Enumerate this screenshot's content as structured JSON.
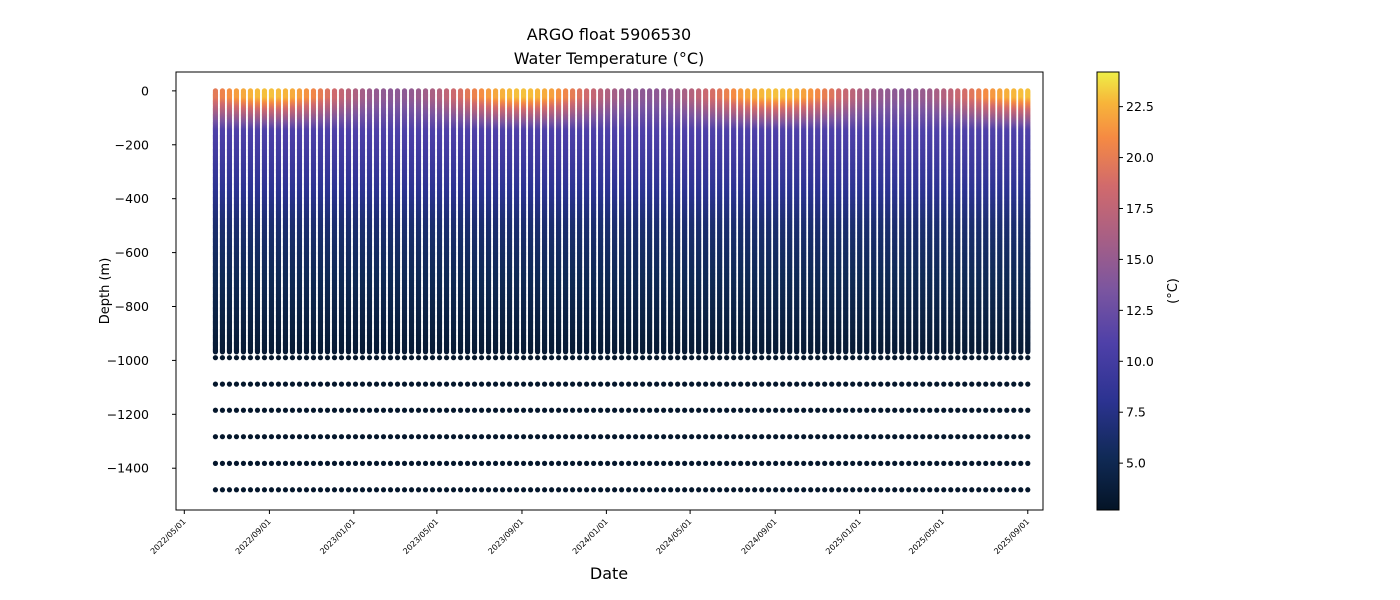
{
  "chart_data": {
    "type": "scatter",
    "title_line1": "ARGO float 5906530",
    "title_line2": "Water Temperature (°C)",
    "xlabel": "Date",
    "ylabel": "Depth (m)",
    "colorbar_label": "(°C)",
    "xlim": [
      "2022-04-19",
      "2025-09-23"
    ],
    "ylim": [
      -1555,
      70
    ],
    "x_ticks": [
      "2022/05/01",
      "2022/09/01",
      "2023/01/01",
      "2023/05/01",
      "2023/09/01",
      "2024/01/01",
      "2024/05/01",
      "2024/09/01",
      "2025/01/01",
      "2025/05/01",
      "2025/09/01"
    ],
    "y_ticks": [
      0,
      -200,
      -400,
      -600,
      -800,
      -1000,
      -1200,
      -1400
    ],
    "colorbar_range": [
      2.7,
      24.2
    ],
    "colorbar_ticks": [
      "5.0",
      "7.5",
      "10.0",
      "12.5",
      "15.0",
      "17.5",
      "20.0",
      "22.5"
    ],
    "profile_start": "2022-06-15",
    "profile_end": "2025-09-01",
    "profile_count": 117,
    "deep_depths": [
      -990,
      -1088,
      -1185,
      -1283,
      -1382,
      -1480
    ],
    "continuous_profile_bottom": -970,
    "temperature_model": {
      "surface_temp_range": [
        14.5,
        23.0
      ],
      "mixed_layer_depth": 30,
      "temp_at_150m": 11.0,
      "temp_at_500m": 6.5,
      "temp_at_970m": 3.5,
      "temp_deep": 3.0
    }
  }
}
